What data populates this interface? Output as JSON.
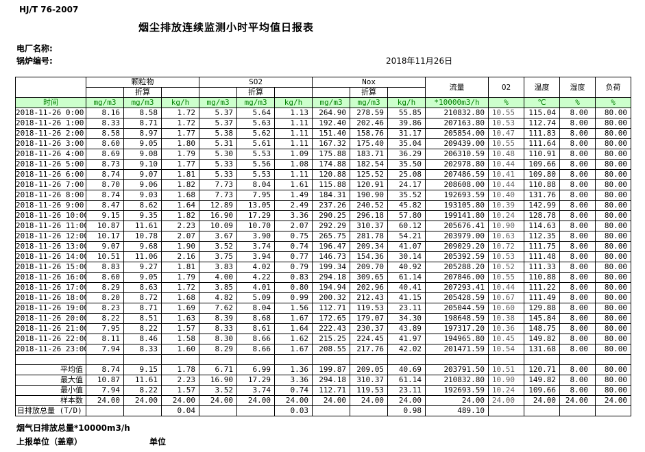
{
  "page": {
    "standard_code": "HJ/T  76-2007",
    "title": "烟尘排放连续监测小时平均值日报表",
    "plant_label": "电厂名称:",
    "boiler_label": "锅炉编号:",
    "date": "2018年11月26日",
    "footer_note": "烟气日排放总量*10000m3/h",
    "report_unit_label": "上报单位（盖章）",
    "unit_word": "单位"
  },
  "colors": {
    "header_green_bg": "#ccffcc",
    "header_green_text": "#008000"
  },
  "table": {
    "time_header": "时间",
    "groups": [
      "颗粒物",
      "SO2",
      "Nox"
    ],
    "converted_label": "折算",
    "tail_headers": [
      "流量",
      "O2",
      "温度",
      "湿度",
      "负荷"
    ],
    "units": [
      "mg/m3",
      "mg/m3",
      "kg/h",
      "mg/m3",
      "mg/m3",
      "kg/h",
      "mg/m3",
      "mg/m3",
      "kg/h",
      "*10000m3/h",
      "%",
      "℃",
      "%",
      "%"
    ],
    "rows": [
      {
        "time": "2018-11-26  0:00",
        "values": [
          "8.16",
          "8.58",
          "1.72",
          "5.37",
          "5.64",
          "1.13",
          "264.90",
          "278.59",
          "55.85",
          "210832.80",
          "10.55",
          "115.04",
          "8.00",
          "80.00"
        ]
      },
      {
        "time": "2018-11-26  1:00",
        "values": [
          "8.33",
          "8.71",
          "1.72",
          "5.37",
          "5.63",
          "1.11",
          "192.40",
          "202.46",
          "39.86",
          "207163.80",
          "10.53",
          "112.74",
          "8.00",
          "80.00"
        ]
      },
      {
        "time": "2018-11-26  2:00",
        "values": [
          "8.58",
          "8.97",
          "1.77",
          "5.38",
          "5.62",
          "1.11",
          "151.40",
          "158.76",
          "31.17",
          "205854.00",
          "10.47",
          "111.83",
          "8.00",
          "80.00"
        ]
      },
      {
        "time": "2018-11-26  3:00",
        "values": [
          "8.60",
          "9.05",
          "1.80",
          "5.31",
          "5.61",
          "1.11",
          "167.32",
          "175.40",
          "35.04",
          "209439.00",
          "10.55",
          "111.64",
          "8.00",
          "80.00"
        ]
      },
      {
        "time": "2018-11-26  4:00",
        "values": [
          "8.69",
          "9.08",
          "1.79",
          "5.30",
          "5.53",
          "1.09",
          "175.88",
          "183.71",
          "36.29",
          "206310.59",
          "10.48",
          "110.91",
          "8.00",
          "80.00"
        ]
      },
      {
        "time": "2018-11-26  5:00",
        "values": [
          "8.73",
          "9.10",
          "1.77",
          "5.33",
          "5.56",
          "1.08",
          "174.88",
          "182.54",
          "35.50",
          "202978.80",
          "10.44",
          "109.66",
          "8.00",
          "80.00"
        ]
      },
      {
        "time": "2018-11-26  6:00",
        "values": [
          "8.74",
          "9.07",
          "1.81",
          "5.33",
          "5.53",
          "1.11",
          "120.88",
          "125.52",
          "25.08",
          "207486.59",
          "10.41",
          "109.80",
          "8.00",
          "80.00"
        ]
      },
      {
        "time": "2018-11-26  7:00",
        "values": [
          "8.70",
          "9.06",
          "1.82",
          "7.73",
          "8.04",
          "1.61",
          "115.88",
          "120.91",
          "24.17",
          "208608.00",
          "10.44",
          "110.88",
          "8.00",
          "80.00"
        ]
      },
      {
        "time": "2018-11-26  8:00",
        "values": [
          "8.74",
          "9.03",
          "1.68",
          "7.73",
          "7.95",
          "1.49",
          "184.31",
          "190.90",
          "35.52",
          "192693.59",
          "10.40",
          "131.76",
          "8.00",
          "80.00"
        ]
      },
      {
        "time": "2018-11-26  9:00",
        "values": [
          "8.47",
          "8.62",
          "1.64",
          "12.89",
          "13.05",
          "2.49",
          "237.26",
          "240.52",
          "45.82",
          "193105.80",
          "10.39",
          "142.99",
          "8.00",
          "80.00"
        ]
      },
      {
        "time": "2018-11-26 10:00",
        "values": [
          "9.15",
          "9.35",
          "1.82",
          "16.90",
          "17.29",
          "3.36",
          "290.25",
          "296.18",
          "57.80",
          "199141.80",
          "10.24",
          "128.78",
          "8.00",
          "80.00"
        ]
      },
      {
        "time": "2018-11-26 11:00",
        "values": [
          "10.87",
          "11.61",
          "2.23",
          "10.09",
          "10.70",
          "2.07",
          "292.29",
          "310.37",
          "60.12",
          "205676.41",
          "10.90",
          "114.63",
          "8.00",
          "80.00"
        ]
      },
      {
        "time": "2018-11-26 12:00",
        "values": [
          "10.17",
          "10.78",
          "2.07",
          "3.67",
          "3.90",
          "0.75",
          "265.75",
          "281.78",
          "54.21",
          "203979.00",
          "10.63",
          "112.35",
          "8.00",
          "80.00"
        ]
      },
      {
        "time": "2018-11-26 13:00",
        "values": [
          "9.07",
          "9.68",
          "1.90",
          "3.52",
          "3.74",
          "0.74",
          "196.47",
          "209.34",
          "41.07",
          "209029.20",
          "10.72",
          "111.75",
          "8.00",
          "80.00"
        ]
      },
      {
        "time": "2018-11-26 14:00",
        "values": [
          "10.51",
          "11.06",
          "2.16",
          "3.75",
          "3.94",
          "0.77",
          "146.73",
          "154.36",
          "30.14",
          "205392.59",
          "10.53",
          "111.48",
          "8.00",
          "80.00"
        ]
      },
      {
        "time": "2018-11-26 15:00",
        "values": [
          "8.83",
          "9.27",
          "1.81",
          "3.83",
          "4.02",
          "0.79",
          "199.34",
          "209.70",
          "40.92",
          "205288.20",
          "10.52",
          "111.33",
          "8.00",
          "80.00"
        ]
      },
      {
        "time": "2018-11-26 16:00",
        "values": [
          "8.60",
          "9.05",
          "1.79",
          "4.00",
          "4.22",
          "0.83",
          "294.18",
          "309.65",
          "61.14",
          "207846.00",
          "10.55",
          "110.88",
          "8.00",
          "80.00"
        ]
      },
      {
        "time": "2018-11-26 17:00",
        "values": [
          "8.29",
          "8.63",
          "1.72",
          "3.85",
          "4.01",
          "0.80",
          "194.94",
          "202.96",
          "40.41",
          "207293.41",
          "10.44",
          "111.22",
          "8.00",
          "80.00"
        ]
      },
      {
        "time": "2018-11-26 18:00",
        "values": [
          "8.20",
          "8.72",
          "1.68",
          "4.82",
          "5.09",
          "0.99",
          "200.32",
          "212.43",
          "41.15",
          "205428.59",
          "10.67",
          "111.49",
          "8.00",
          "80.00"
        ]
      },
      {
        "time": "2018-11-26 19:00",
        "values": [
          "8.23",
          "8.71",
          "1.69",
          "7.62",
          "8.04",
          "1.56",
          "112.71",
          "119.53",
          "23.11",
          "205044.59",
          "10.60",
          "129.88",
          "8.00",
          "80.00"
        ]
      },
      {
        "time": "2018-11-26 20:00",
        "values": [
          "8.22",
          "8.51",
          "1.63",
          "8.39",
          "8.68",
          "1.67",
          "172.65",
          "179.07",
          "34.30",
          "198648.59",
          "10.38",
          "145.84",
          "8.00",
          "80.00"
        ]
      },
      {
        "time": "2018-11-26 21:00",
        "values": [
          "7.95",
          "8.22",
          "1.57",
          "8.33",
          "8.61",
          "1.64",
          "222.43",
          "230.37",
          "43.89",
          "197317.20",
          "10.36",
          "148.75",
          "8.00",
          "80.00"
        ]
      },
      {
        "time": "2018-11-26 22:00",
        "values": [
          "8.11",
          "8.46",
          "1.58",
          "8.30",
          "8.66",
          "1.62",
          "215.25",
          "224.45",
          "41.97",
          "194965.80",
          "10.45",
          "149.82",
          "8.00",
          "80.00"
        ]
      },
      {
        "time": "2018-11-26 23:00",
        "values": [
          "7.94",
          "8.33",
          "1.60",
          "8.29",
          "8.66",
          "1.67",
          "208.55",
          "217.76",
          "42.02",
          "201471.59",
          "10.54",
          "131.68",
          "8.00",
          "80.00"
        ]
      }
    ],
    "summary_rows": [
      {
        "label": "平均值",
        "left_align": false,
        "values": [
          "8.74",
          "9.15",
          "1.78",
          "6.71",
          "6.99",
          "1.36",
          "199.87",
          "209.05",
          "40.69",
          "203791.50",
          "10.51",
          "120.71",
          "8.00",
          "80.00"
        ]
      },
      {
        "label": "最大值",
        "left_align": false,
        "values": [
          "10.87",
          "11.61",
          "2.23",
          "16.90",
          "17.29",
          "3.36",
          "294.18",
          "310.37",
          "61.14",
          "210832.80",
          "10.90",
          "149.82",
          "8.00",
          "80.00"
        ]
      },
      {
        "label": "最小值",
        "left_align": false,
        "values": [
          "7.94",
          "8.22",
          "1.57",
          "3.52",
          "3.74",
          "0.74",
          "112.71",
          "119.53",
          "23.11",
          "192693.59",
          "10.24",
          "109.66",
          "8.00",
          "80.00"
        ]
      },
      {
        "label": "样本数",
        "left_align": false,
        "values": [
          "24.00",
          "24.00",
          "24.00",
          "24.00",
          "24.00",
          "24.00",
          "24.00",
          "24.00",
          "24.00",
          "24.00",
          "24.00",
          "24.00",
          "24.00",
          "24.00"
        ]
      },
      {
        "label": "日排放总量 (T/D)",
        "left_align": true,
        "values": [
          "",
          "",
          "0.04",
          "",
          "",
          "0.03",
          "",
          "",
          "0.98",
          "489.10",
          "",
          "",
          "",
          ""
        ]
      }
    ]
  }
}
